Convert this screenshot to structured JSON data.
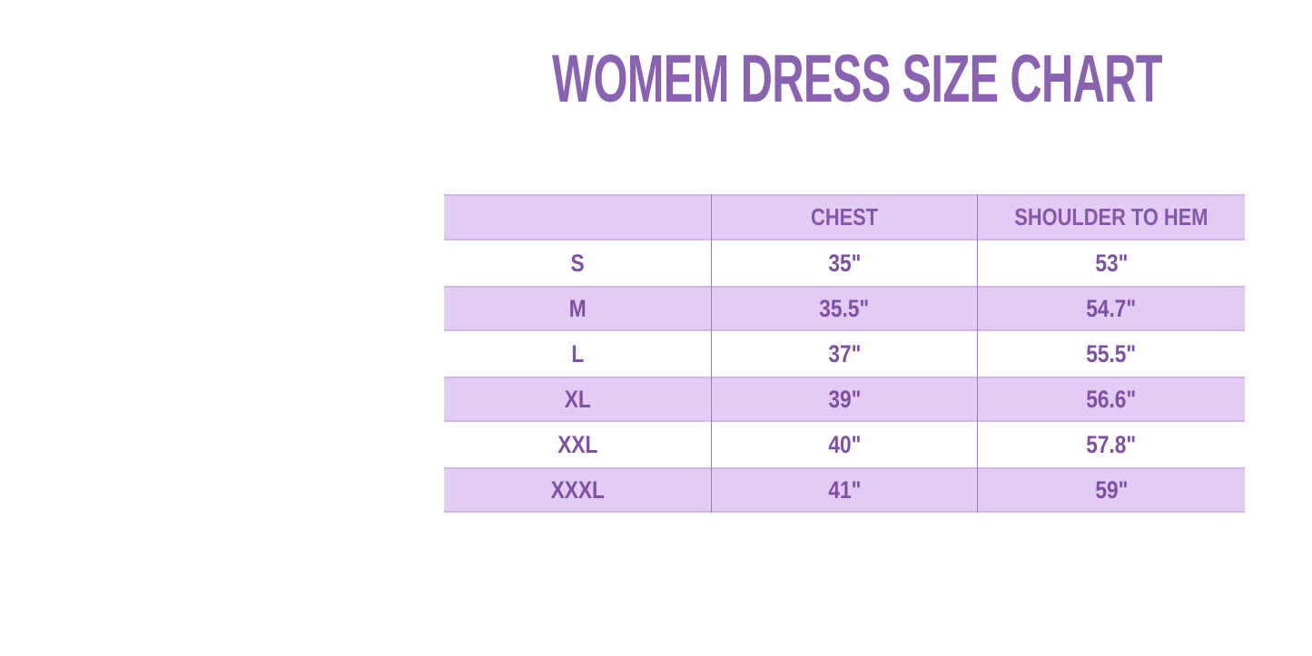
{
  "chart_data": {
    "type": "table",
    "title": "WOMEM DRESS SIZE CHART",
    "columns": [
      "",
      "CHEST",
      "SHOULDER TO HEM"
    ],
    "rows": [
      [
        "S",
        "35\"",
        "53\""
      ],
      [
        "M",
        "35.5\"",
        "54.7\""
      ],
      [
        "L",
        "37\"",
        "55.5\""
      ],
      [
        "XL",
        "39\"",
        "56.6\""
      ],
      [
        "XXL",
        "40\"",
        "57.8\""
      ],
      [
        "XXXL",
        "41\"",
        "59\""
      ]
    ],
    "layout": {
      "row_striping": "header and alternate rows lavender, others white",
      "grid": "vertical dividers between the 3 columns only"
    }
  },
  "colors": {
    "background": "#ffffff",
    "title_text": "#8b62b2",
    "table_text": "#7e50a2",
    "row_shade": "#e2ccf3",
    "row_shade_edge": "#d3b5e8",
    "column_divider": "#9b77bd"
  }
}
